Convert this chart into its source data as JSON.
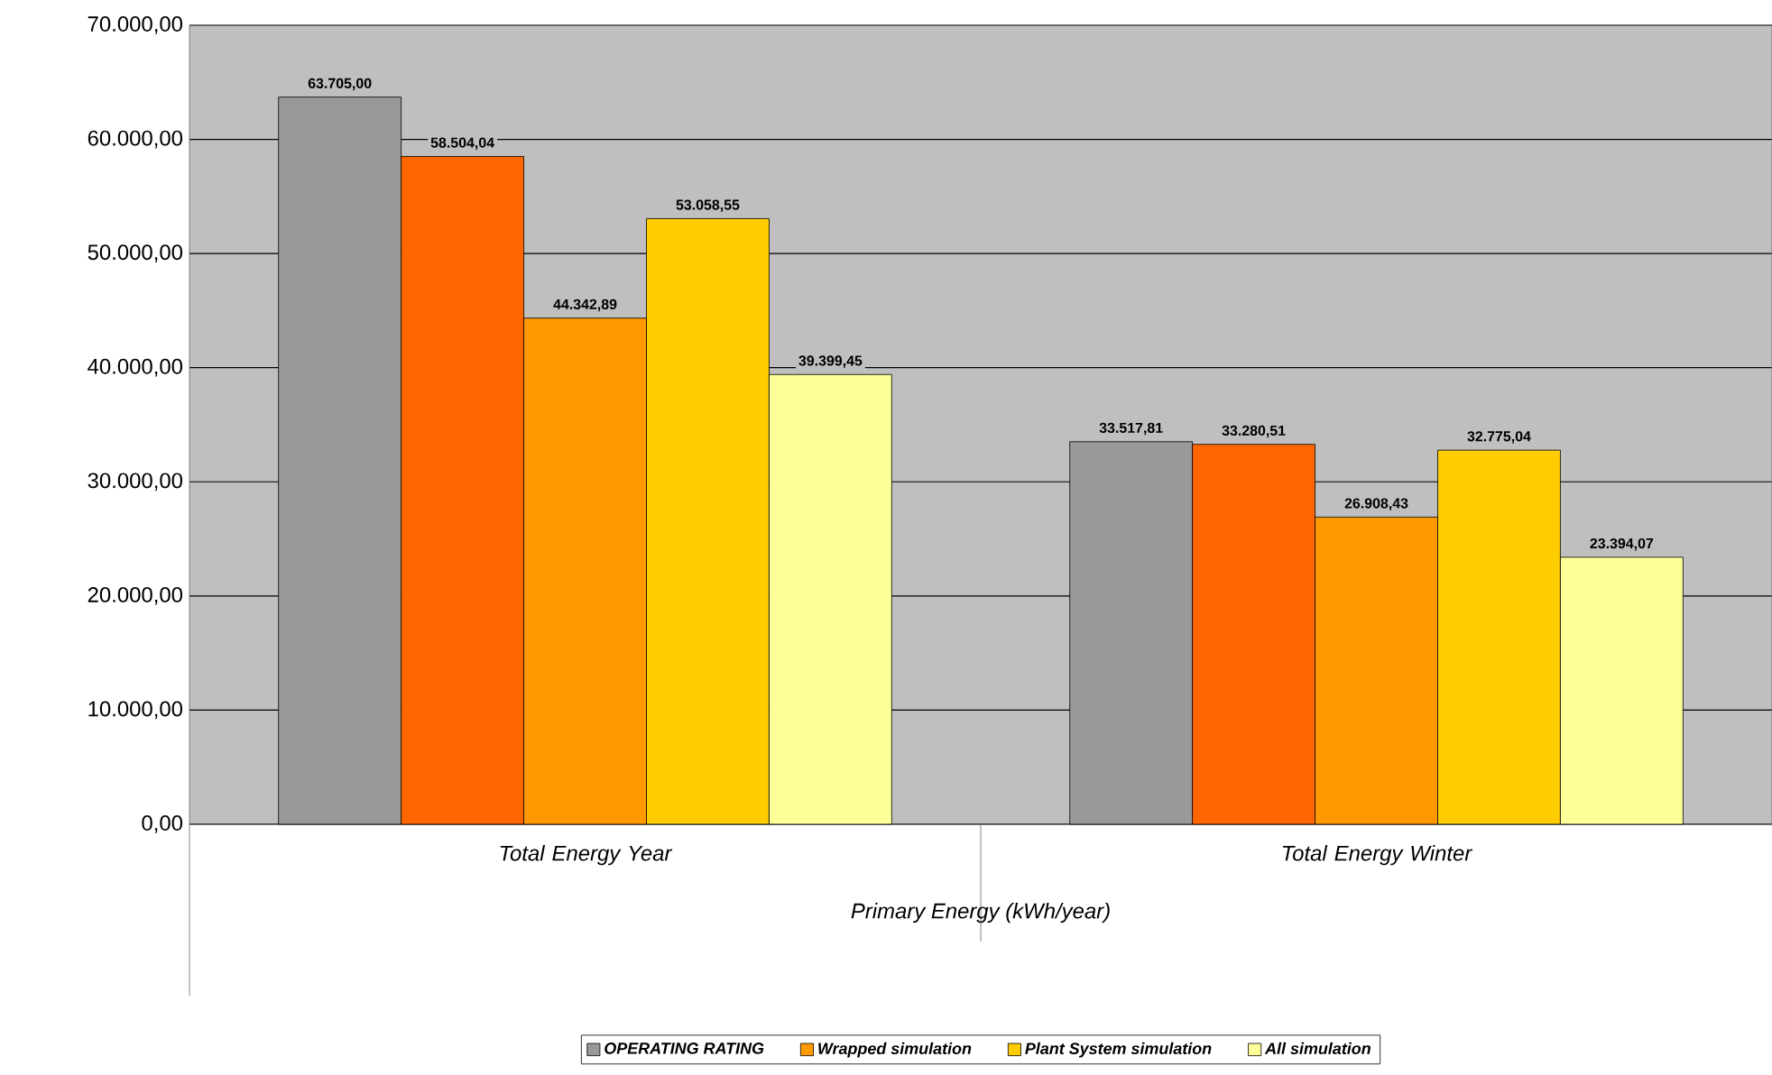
{
  "chart_data": {
    "type": "bar",
    "categories": [
      "Total Energy Year",
      "Total Energy Winter"
    ],
    "xlabel": "Primary Energy (kWh/year)",
    "series": [
      {
        "name": "OPERATING RATING",
        "color": "#999999",
        "values": [
          63705.0,
          33517.81
        ],
        "value_labels": [
          "63.705,00",
          "33.517,81"
        ]
      },
      {
        "color": "#ff6600",
        "values": [
          58504.04,
          33280.51
        ],
        "value_labels": [
          "58.504,04",
          "33.280,51"
        ]
      },
      {
        "name": "Wrapped simulation",
        "color": "#ff9900",
        "values": [
          44342.89,
          26908.43
        ],
        "value_labels": [
          "44.342,89",
          "26.908,43"
        ]
      },
      {
        "name": "Plant System simulation",
        "color": "#ffcc00",
        "values": [
          53058.55,
          32775.04
        ],
        "value_labels": [
          "53.058,55",
          "32.775,04"
        ]
      },
      {
        "name": "All simulation",
        "color": "#ffff99",
        "values": [
          39399.45,
          23394.07
        ],
        "value_labels": [
          "39.399,45",
          "23.394,07"
        ]
      }
    ],
    "ylim": [
      0,
      70000
    ],
    "yticks": [
      {
        "value": 0,
        "label": "0,00"
      },
      {
        "value": 10000,
        "label": "10.000,00"
      },
      {
        "value": 20000,
        "label": "20.000,00"
      },
      {
        "value": 30000,
        "label": "30.000,00"
      },
      {
        "value": 40000,
        "label": "40.000,00"
      },
      {
        "value": 50000,
        "label": "50.000,00"
      },
      {
        "value": 60000,
        "label": "60.000,00"
      },
      {
        "value": 70000,
        "label": "70.000,00"
      }
    ],
    "grid": "y",
    "legend": "bottom"
  }
}
